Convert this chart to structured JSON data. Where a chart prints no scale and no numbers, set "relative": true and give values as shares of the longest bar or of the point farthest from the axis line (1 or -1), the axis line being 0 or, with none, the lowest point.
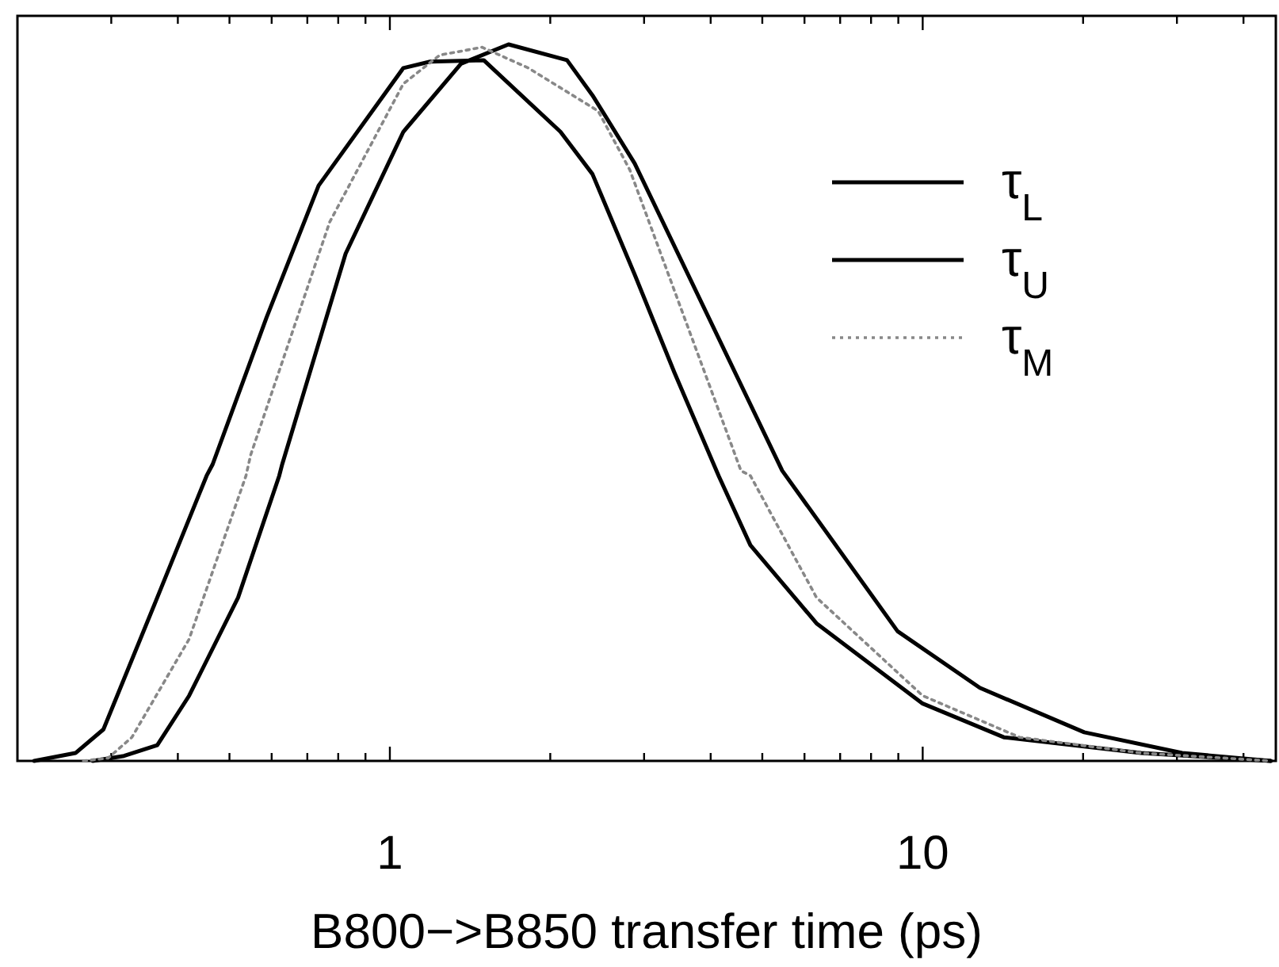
{
  "chart_data": {
    "type": "line",
    "relative": true,
    "xlabel": "B800−>B850 transfer time (ps)",
    "log": "x",
    "xlim": [
      0.2,
      46
    ],
    "tick_labels": "x",
    "legend": "top right",
    "xticks": [
      {
        "value": 0.3,
        "label": null
      },
      {
        "value": 0.4,
        "label": null
      },
      {
        "value": 0.5,
        "label": null
      },
      {
        "value": 0.6,
        "label": null
      },
      {
        "value": 0.7,
        "label": null
      },
      {
        "value": 0.8,
        "label": null
      },
      {
        "value": 0.9,
        "label": null
      },
      1,
      {
        "value": 2,
        "label": null
      },
      {
        "value": 3,
        "label": null
      },
      {
        "value": 4,
        "label": null
      },
      {
        "value": 5,
        "label": null
      },
      {
        "value": 6,
        "label": null
      },
      {
        "value": 7,
        "label": null
      },
      {
        "value": 8,
        "label": null
      },
      {
        "value": 9,
        "label": null
      },
      10,
      {
        "value": 20,
        "label": null
      },
      {
        "value": 30,
        "label": null
      },
      {
        "value": 40,
        "label": null
      }
    ],
    "series": [
      {
        "name": "τ$_{L}$",
        "color": "#000000",
        "line_style": "solid",
        "x": [
          0.215,
          0.257,
          0.29,
          0.366,
          0.453,
          0.465,
          0.587,
          0.735,
          1.06,
          1.19,
          1.5,
          2.09,
          2.4,
          2.88,
          3.42,
          4.14,
          4.75,
          6.32,
          10,
          14.2,
          25.7,
          45
        ],
        "values": [
          0,
          0.011,
          0.044,
          0.228,
          0.398,
          0.414,
          0.619,
          0.803,
          0.967,
          0.976,
          0.978,
          0.878,
          0.819,
          0.679,
          0.542,
          0.398,
          0.301,
          0.192,
          0.08,
          0.033,
          0.011,
          0
        ]
      },
      {
        "name": "τ$_{U}$",
        "color": "#000000",
        "line_style": "solid",
        "x": [
          0.277,
          0.317,
          0.366,
          0.42,
          0.519,
          0.62,
          0.628,
          0.826,
          1.06,
          1.36,
          1.67,
          2.15,
          2.4,
          2.88,
          5.45,
          8.97,
          12.8,
          20.1,
          30.7,
          45
        ],
        "values": [
          0,
          0.007,
          0.022,
          0.091,
          0.228,
          0.398,
          0.414,
          0.708,
          0.878,
          0.973,
          1,
          0.978,
          0.929,
          0.834,
          0.405,
          0.181,
          0.102,
          0.04,
          0.011,
          0
        ]
      },
      {
        "name": "τ$_{M}$",
        "color": "#888888",
        "line_style": "dotted",
        "x": [
          0.266,
          0.296,
          0.328,
          0.42,
          0.537,
          0.548,
          0.771,
          1.06,
          1.24,
          1.49,
          1.82,
          2.46,
          2.82,
          4.56,
          4.75,
          6.32,
          10,
          15.2,
          25.7,
          45
        ],
        "values": [
          0,
          0.004,
          0.033,
          0.17,
          0.398,
          0.427,
          0.752,
          0.945,
          0.985,
          0.996,
          0.967,
          0.907,
          0.825,
          0.405,
          0.398,
          0.228,
          0.091,
          0.033,
          0.011,
          0
        ]
      }
    ]
  }
}
